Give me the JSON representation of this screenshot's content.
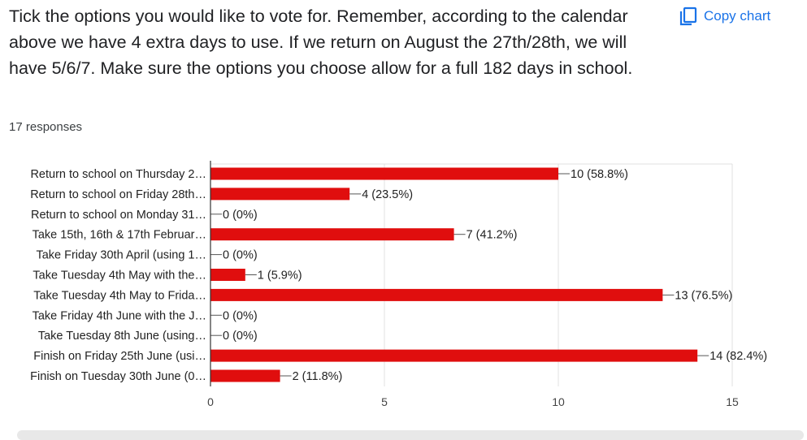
{
  "question": "Tick the options you would like to vote for. Remember, according to the calendar above we have 4 extra days to use. If we return on August the 27th/28th, we will have 5/6/7. Make sure the options you choose allow for a full 182 days in school.",
  "copy_chart": {
    "label": "Copy chart",
    "icon": "copy-icon"
  },
  "responses_label": "17 responses",
  "colors": {
    "bar": "#e00e0e",
    "accent": "#1a73e8",
    "gridline": "#e0e0e0",
    "axis": "#333333"
  },
  "chart_data": {
    "type": "bar",
    "orientation": "horizontal",
    "categories": [
      "Return to school on Thursday 2…",
      "Return to school on Friday 28th…",
      "Return to school on Monday 31…",
      "Take 15th, 16th & 17th Februar…",
      "Take Friday 30th April (using 1…",
      "Take Tuesday 4th May with the…",
      "Take Tuesday 4th May to Frida…",
      "Take Friday 4th June with the J…",
      "Take Tuesday 8th June (using…",
      "Finish on Friday 25th June (usi…",
      "Finish on Tuesday 30th June (0…"
    ],
    "values": [
      10,
      4,
      0,
      7,
      0,
      1,
      13,
      0,
      0,
      14,
      2
    ],
    "value_labels": [
      "10 (58.8%)",
      "4 (23.5%)",
      "0 (0%)",
      "7 (41.2%)",
      "0 (0%)",
      "1 (5.9%)",
      "13 (76.5%)",
      "0 (0%)",
      "0 (0%)",
      "14 (82.4%)",
      "2 (11.8%)"
    ],
    "xlim": [
      0,
      15
    ],
    "xticks": [
      0,
      5,
      10,
      15
    ],
    "xtick_labels": [
      "0",
      "5",
      "10",
      "15"
    ],
    "grid": true
  }
}
